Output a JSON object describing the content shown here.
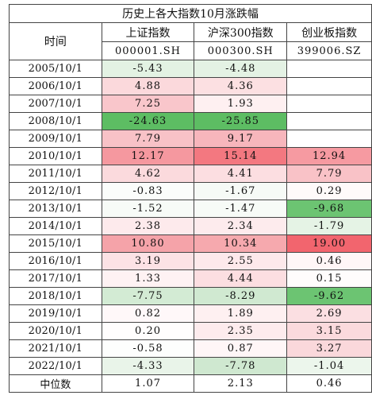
{
  "title": "历史上各大指数10月涨跌幅",
  "columns": [
    {
      "name": "时间",
      "code": ""
    },
    {
      "name": "上证指数",
      "code": "000001.SH"
    },
    {
      "name": "沪深300指数",
      "code": "000300.SH"
    },
    {
      "name": "创业板指数",
      "code": "399006.SZ"
    }
  ],
  "rows": [
    {
      "date": "2005/10/1",
      "values": [
        "-5.43",
        "-4.48",
        ""
      ],
      "colors": [
        "#e3f2e3",
        "#e4f2e4",
        "#ffffff"
      ]
    },
    {
      "date": "2006/10/1",
      "values": [
        "4.88",
        "4.36",
        ""
      ],
      "colors": [
        "#fbd9dc",
        "#fce0e2",
        "#ffffff"
      ]
    },
    {
      "date": "2007/10/1",
      "values": [
        "7.25",
        "1.93",
        ""
      ],
      "colors": [
        "#f9c6cb",
        "#fef0f1",
        "#ffffff"
      ]
    },
    {
      "date": "2008/10/1",
      "values": [
        "-24.63",
        "-25.85",
        ""
      ],
      "colors": [
        "#5dbd63",
        "#5dbd63",
        "#ffffff"
      ]
    },
    {
      "date": "2009/10/1",
      "values": [
        "7.79",
        "9.17",
        ""
      ],
      "colors": [
        "#f8c2c7",
        "#f7b6bc",
        "#ffffff"
      ]
    },
    {
      "date": "2010/10/1",
      "values": [
        "12.17",
        "15.14",
        "12.94"
      ],
      "colors": [
        "#f5989f",
        "#f37880",
        "#f69aa1"
      ]
    },
    {
      "date": "2011/10/1",
      "values": [
        "4.62",
        "4.41",
        "7.79"
      ],
      "colors": [
        "#fbdadd",
        "#fcdee1",
        "#f9c2c7"
      ]
    },
    {
      "date": "2012/10/1",
      "values": [
        "-0.83",
        "-1.67",
        "0.29"
      ],
      "colors": [
        "#fbfdfb",
        "#f6faf6",
        "#fffafa"
      ]
    },
    {
      "date": "2013/10/1",
      "values": [
        "-1.52",
        "-1.47",
        "-9.68"
      ],
      "colors": [
        "#f7fbf7",
        "#f7fbf7",
        "#6cc472"
      ]
    },
    {
      "date": "2014/10/1",
      "values": [
        "2.38",
        "2.34",
        "-1.79"
      ],
      "colors": [
        "#fdeaec",
        "#fdebed",
        "#e5f3e5"
      ]
    },
    {
      "date": "2015/10/1",
      "values": [
        "10.80",
        "10.34",
        "19.00"
      ],
      "colors": [
        "#f5a3a9",
        "#f6a9ae",
        "#f2656e"
      ]
    },
    {
      "date": "2016/10/1",
      "values": [
        "3.19",
        "2.55",
        "0.46"
      ],
      "colors": [
        "#fce2e5",
        "#fde9eb",
        "#fff6f7"
      ]
    },
    {
      "date": "2017/10/1",
      "values": [
        "1.33",
        "4.44",
        "0.15"
      ],
      "colors": [
        "#fef2f3",
        "#fcdee1",
        "#fffcfc"
      ]
    },
    {
      "date": "2018/10/1",
      "values": [
        "-7.75",
        "-8.29",
        "-9.62"
      ],
      "colors": [
        "#d3ebd4",
        "#d0e9d1",
        "#6cc472"
      ]
    },
    {
      "date": "2019/10/1",
      "values": [
        "0.82",
        "1.89",
        "2.69"
      ],
      "colors": [
        "#fff8f9",
        "#fef0f1",
        "#fbdfe2"
      ]
    },
    {
      "date": "2020/10/1",
      "values": [
        "0.20",
        "2.35",
        "3.15"
      ],
      "colors": [
        "#fffdfd",
        "#fdebed",
        "#fbdadd"
      ]
    },
    {
      "date": "2021/10/1",
      "values": [
        "-0.58",
        "0.87",
        "3.27"
      ],
      "colors": [
        "#fdfefd",
        "#fff6f7",
        "#fad8db"
      ]
    },
    {
      "date": "2022/10/1",
      "values": [
        "-4.33",
        "-7.78",
        "-1.04"
      ],
      "colors": [
        "#e9f4e9",
        "#cfe8d0",
        "#ecf6ec"
      ]
    }
  ],
  "median": {
    "label": "中位数",
    "values": [
      "1.07",
      "2.13",
      "0.46"
    ]
  }
}
